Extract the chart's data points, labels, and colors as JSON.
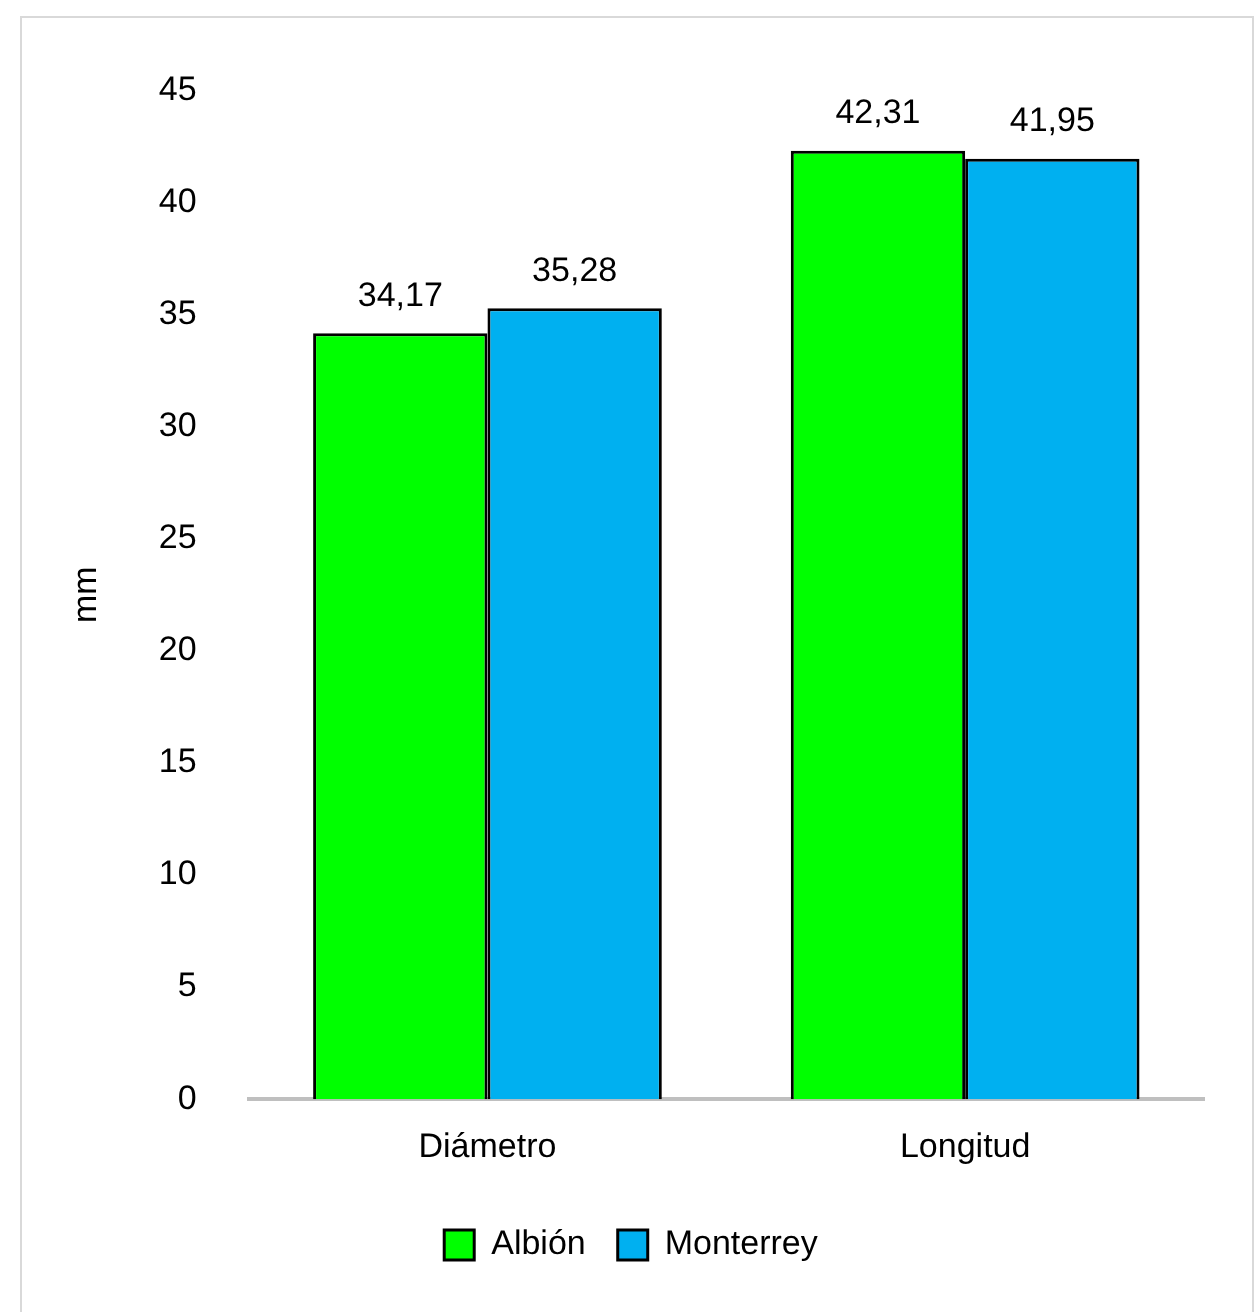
{
  "chart_data": {
    "type": "bar",
    "ylabel": "mm",
    "categories": [
      "Diámetro",
      "Longitud"
    ],
    "series": [
      {
        "name": "Albión",
        "color": "#00ff00",
        "values": [
          34.17,
          42.31
        ],
        "value_labels": [
          "34,17",
          "42,31"
        ]
      },
      {
        "name": "Monterrey",
        "color": "#00b0f0",
        "values": [
          35.28,
          41.95
        ],
        "value_labels": [
          "35,28",
          "41,95"
        ]
      }
    ],
    "ylim": [
      0,
      45
    ],
    "yticks": [
      0,
      5,
      10,
      15,
      20,
      25,
      30,
      35,
      40,
      45
    ],
    "grid": false,
    "legend": "bottom"
  }
}
